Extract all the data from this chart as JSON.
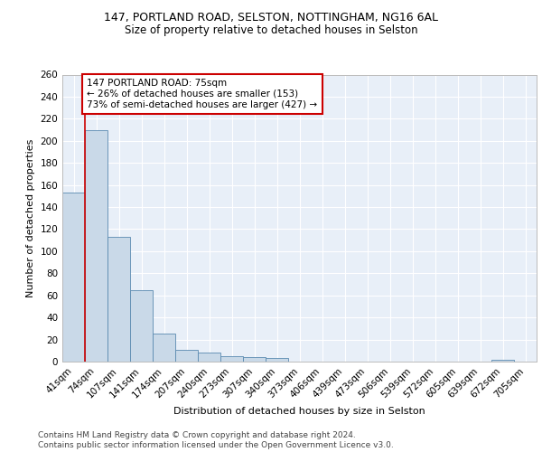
{
  "title1": "147, PORTLAND ROAD, SELSTON, NOTTINGHAM, NG16 6AL",
  "title2": "Size of property relative to detached houses in Selston",
  "xlabel": "Distribution of detached houses by size in Selston",
  "ylabel": "Number of detached properties",
  "bin_labels": [
    "41sqm",
    "74sqm",
    "107sqm",
    "141sqm",
    "174sqm",
    "207sqm",
    "240sqm",
    "273sqm",
    "307sqm",
    "340sqm",
    "373sqm",
    "406sqm",
    "439sqm",
    "473sqm",
    "506sqm",
    "539sqm",
    "572sqm",
    "605sqm",
    "639sqm",
    "672sqm",
    "705sqm"
  ],
  "bar_values": [
    153,
    210,
    113,
    65,
    25,
    11,
    8,
    5,
    4,
    3,
    0,
    0,
    0,
    0,
    0,
    0,
    0,
    0,
    0,
    2,
    0
  ],
  "bar_color": "#c9d9e8",
  "bar_edge_color": "#5a8ab0",
  "background_color": "#e8eff8",
  "grid_color": "#ffffff",
  "vline_color": "#cc0000",
  "vline_x": 0.5,
  "annotation_text": "147 PORTLAND ROAD: 75sqm\n← 26% of detached houses are smaller (153)\n73% of semi-detached houses are larger (427) →",
  "annotation_box_color": "#ffffff",
  "annotation_box_edge": "#cc0000",
  "ylim": [
    0,
    260
  ],
  "yticks": [
    0,
    20,
    40,
    60,
    80,
    100,
    120,
    140,
    160,
    180,
    200,
    220,
    240,
    260
  ],
  "footer_text": "Contains HM Land Registry data © Crown copyright and database right 2024.\nContains public sector information licensed under the Open Government Licence v3.0.",
  "title1_fontsize": 9,
  "title2_fontsize": 8.5,
  "xlabel_fontsize": 8,
  "ylabel_fontsize": 8,
  "tick_fontsize": 7.5,
  "annotation_fontsize": 7.5,
  "footer_fontsize": 6.5
}
